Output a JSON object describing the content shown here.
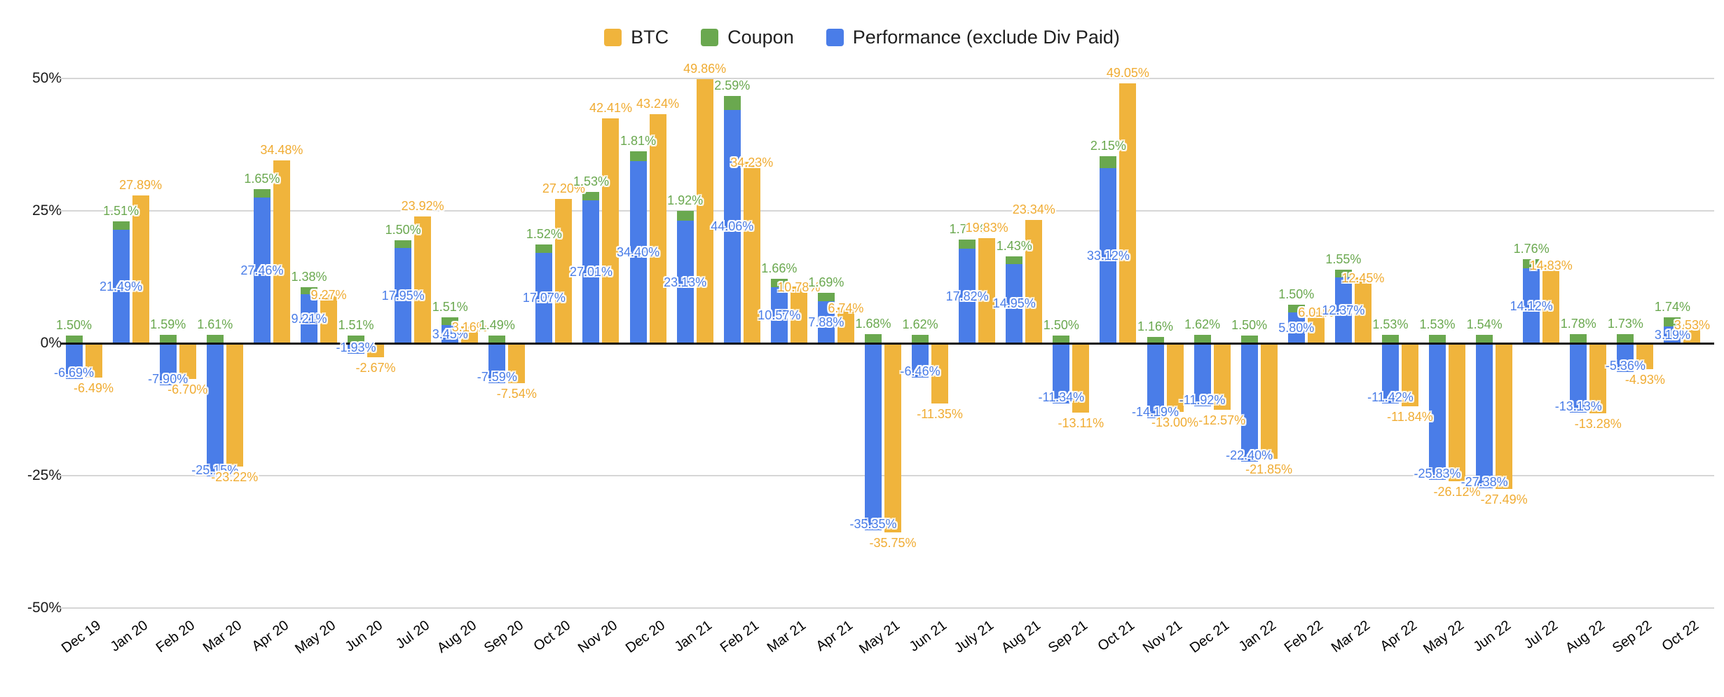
{
  "chart_data": {
    "type": "bar",
    "subtype": "grouped-columns-with-stacked-pair",
    "title": "",
    "xlabel": "",
    "ylabel": "",
    "ylim": [
      -50,
      50
    ],
    "yticks": [
      "50%",
      "25%",
      "0%",
      "-25%",
      "-50%"
    ],
    "grid": true,
    "legend_position": "top-center",
    "label_format": "percent-2dp",
    "stacking_note": "Coupon segment is stacked on top of Performance column; BTC is a separate column to the right of each stacked column",
    "categories": [
      "Dec 19",
      "Jan 20",
      "Feb 20",
      "Mar 20",
      "Apr 20",
      "May 20",
      "Jun 20",
      "Jul 20",
      "Aug 20",
      "Sep 20",
      "Oct 20",
      "Nov 20",
      "Dec 20",
      "Jan 21",
      "Feb 21",
      "Mar 21",
      "Apr 21",
      "May 21",
      "Jun 21",
      "July 21",
      "Aug 21",
      "Sep 21",
      "Oct 21",
      "Nov 21",
      "Dec 21",
      "Jan 22",
      "Feb 22",
      "Mar 22",
      "Apr 22",
      "May 22",
      "Jun 22",
      "Jul 22",
      "Aug 22",
      "Sep 22",
      "Oct 22"
    ],
    "series": [
      {
        "name": "BTC",
        "color": "#F0B43C",
        "values": [
          -6.49,
          27.89,
          -6.7,
          -23.22,
          34.48,
          9.27,
          -2.67,
          23.92,
          3.16,
          -7.54,
          27.2,
          42.41,
          43.24,
          49.86,
          34.23,
          10.78,
          6.74,
          -35.75,
          -11.35,
          19.83,
          23.34,
          -13.11,
          49.05,
          -13.0,
          -12.57,
          -21.85,
          6.01,
          12.45,
          -11.84,
          -26.12,
          -27.49,
          14.83,
          -13.28,
          -4.93,
          3.53
        ]
      },
      {
        "name": "Coupon",
        "color": "#6AA84F",
        "values": [
          1.5,
          1.51,
          1.59,
          1.61,
          1.65,
          1.38,
          1.51,
          1.5,
          1.51,
          1.49,
          1.52,
          1.53,
          1.81,
          1.92,
          2.59,
          1.66,
          1.69,
          1.68,
          1.62,
          1.71,
          1.43,
          1.5,
          2.15,
          1.16,
          1.62,
          1.5,
          1.5,
          1.55,
          1.53,
          1.53,
          1.54,
          1.76,
          1.78,
          1.73,
          1.74
        ]
      },
      {
        "name": "Performance (exclude Div Paid)",
        "color": "#4A7DE8",
        "values": [
          -6.69,
          21.49,
          -7.9,
          -25.15,
          27.46,
          9.21,
          -1.93,
          17.95,
          3.45,
          -7.59,
          17.07,
          27.01,
          34.4,
          23.13,
          44.06,
          10.57,
          7.88,
          -35.35,
          -6.46,
          17.82,
          14.95,
          -11.34,
          33.12,
          -14.19,
          -11.92,
          -22.4,
          5.8,
          12.37,
          -11.42,
          -25.83,
          -27.38,
          14.12,
          -13.13,
          -5.36,
          3.19
        ]
      }
    ]
  }
}
